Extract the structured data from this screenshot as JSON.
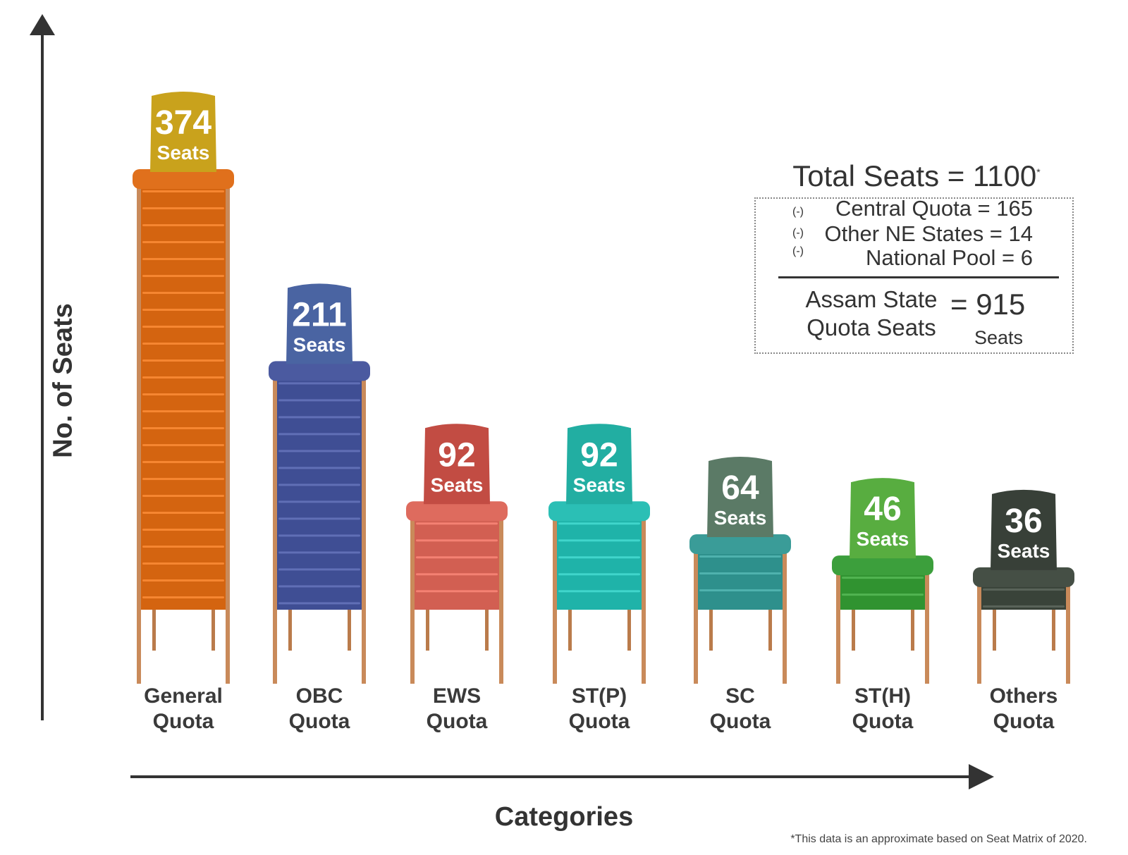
{
  "chart_data": {
    "type": "bar",
    "categories": [
      {
        "line1": "General",
        "line2": "Quota"
      },
      {
        "line1": "OBC",
        "line2": "Quota"
      },
      {
        "line1": "EWS",
        "line2": "Quota"
      },
      {
        "line1": "ST(P)",
        "line2": "Quota"
      },
      {
        "line1": "SC",
        "line2": "Quota"
      },
      {
        "line1": "ST(H)",
        "line2": "Quota"
      },
      {
        "line1": "Others",
        "line2": "Quota"
      }
    ],
    "values": [
      374,
      211,
      92,
      92,
      64,
      46,
      36
    ],
    "value_unit": "Seats",
    "colors": [
      "#e0701c",
      "#4b5aa0",
      "#de6b5e",
      "#2bbfb5",
      "#3a9c98",
      "#3c9f3c",
      "#454f45"
    ],
    "back_colors": [
      "#c9a21c",
      "#4a64a2",
      "#c24c43",
      "#22aea2",
      "#5b7a66",
      "#58ad40",
      "#384038"
    ],
    "xlabel": "Categories",
    "ylabel": "No. of Seats",
    "grid": false,
    "legend": "none"
  },
  "summary": {
    "title": "Total Seats = 1100",
    "title_mark": "*",
    "minus_sign": "(-)",
    "deductions": [
      {
        "label": "Central Quota = 165"
      },
      {
        "label": "Other NE States = 14"
      },
      {
        "label": "National Pool = 6"
      }
    ],
    "result_label_line1": "Assam State",
    "result_label_line2": "Quota Seats",
    "result_value": "= 915",
    "result_unit": "Seats"
  },
  "footnote": "*This data is an approximate based on Seat Matrix of 2020."
}
